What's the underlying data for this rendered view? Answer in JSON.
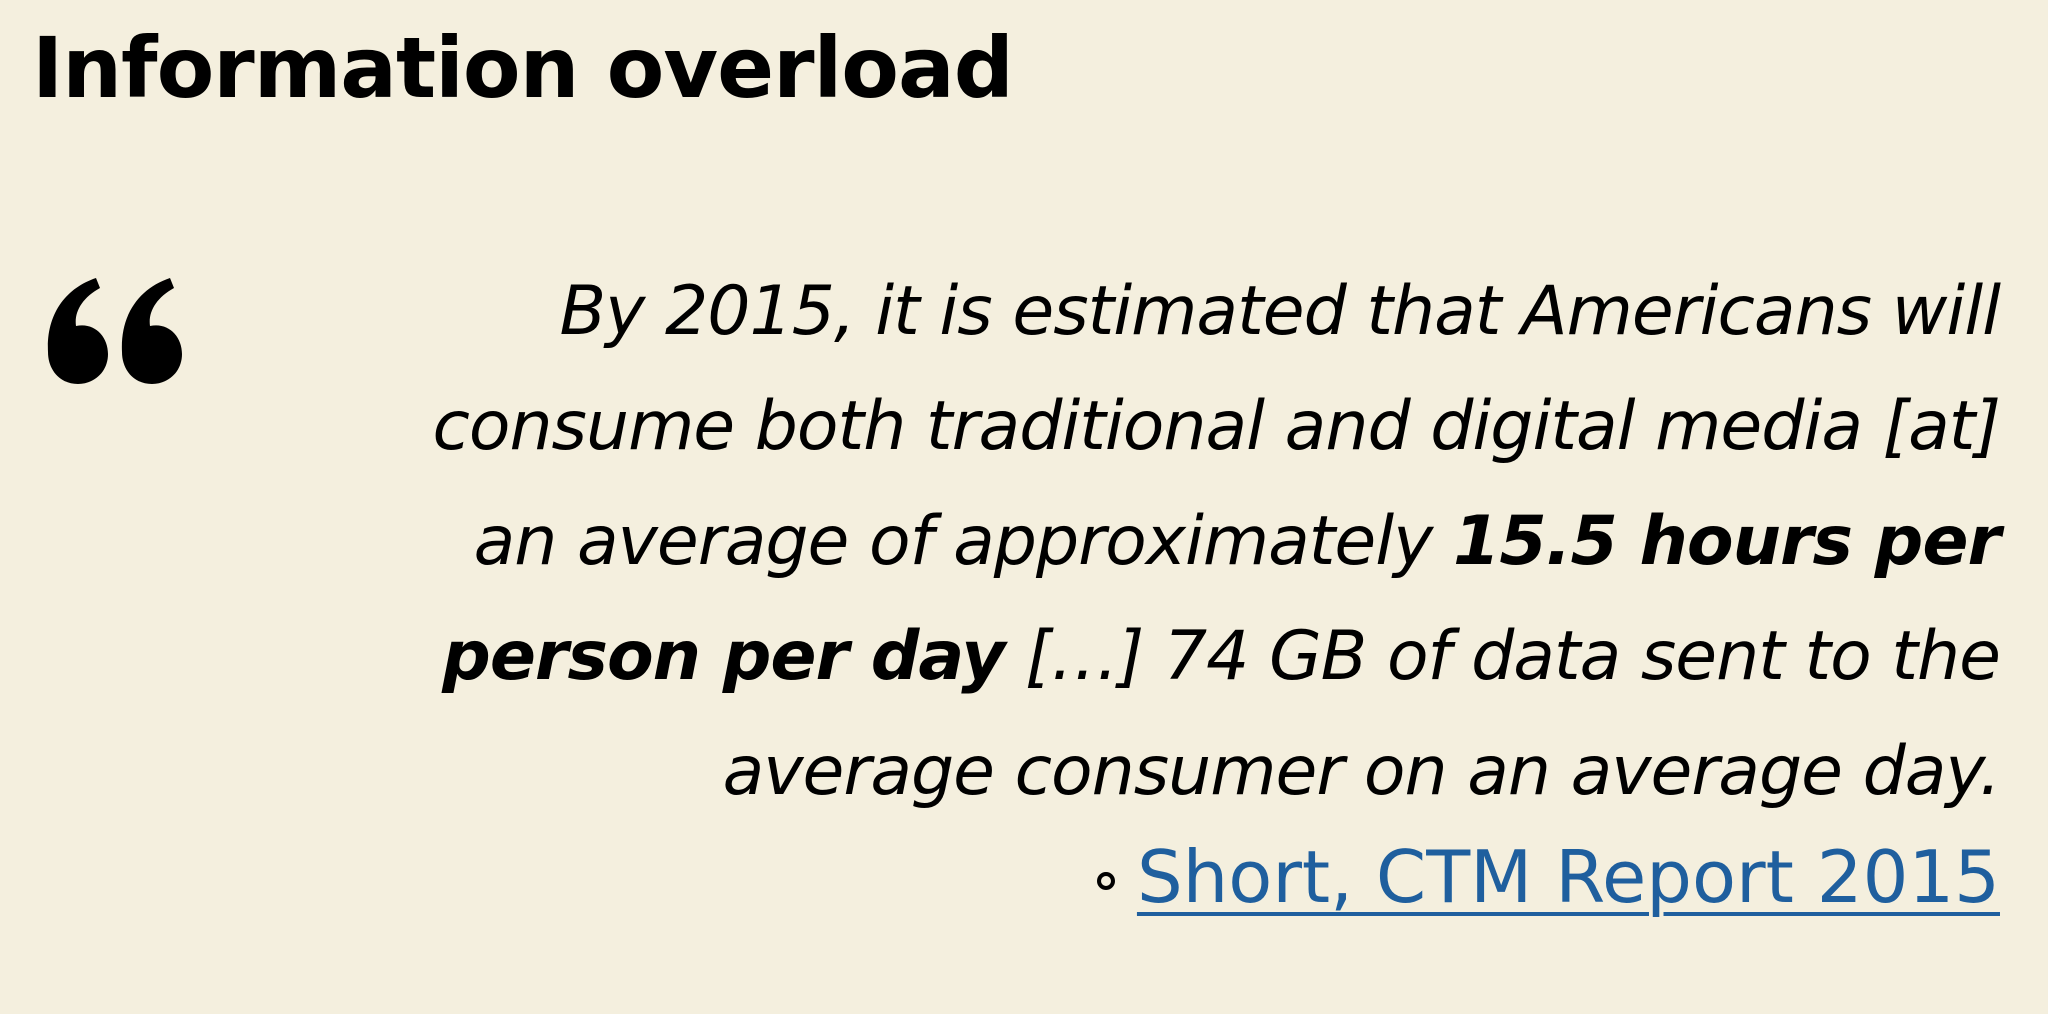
{
  "slide": {
    "title": "Information overload"
  },
  "quote": {
    "text_before": "By 2015, it is estimated that Americans will consume both traditional and digital media [at] an average of approximately ",
    "emphasis": "15.5 hours per person per day",
    "text_after": " […] 74 GB of data sent to the average consumer on an average day."
  },
  "source": {
    "link_text": "Short, CTM Report 2015"
  },
  "icons": {
    "quote": "open-quote-icon",
    "bullet": "hollow-circle-bullet-icon"
  },
  "colors": {
    "background": "#f4efde",
    "text": "#000000",
    "link": "#1f5f9e"
  }
}
